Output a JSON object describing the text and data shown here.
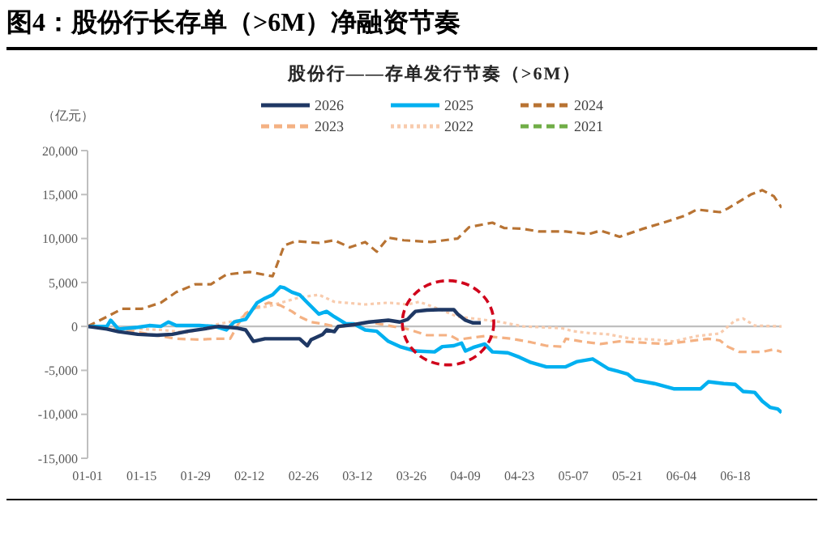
{
  "chart_data": {
    "type": "line",
    "title": "图4：股份行长存单（>6M）净融资节奏",
    "subtitle": "股份行——存单发行节奏（>6M）",
    "ylabel": "（亿元）",
    "legend": "top",
    "xlim": [
      "--01-01",
      "--06-30"
    ],
    "xticks": [
      {
        "value": "--01-01",
        "label": "01-01"
      },
      {
        "value": "--01-15",
        "label": "01-15"
      },
      {
        "value": "--01-29",
        "label": "01-29"
      },
      {
        "value": "--02-12",
        "label": "02-12"
      },
      {
        "value": "--02-26",
        "label": "02-26"
      },
      {
        "value": "--03-12",
        "label": "03-12"
      },
      {
        "value": "--03-26",
        "label": "03-26"
      },
      {
        "value": "--04-09",
        "label": "04-09"
      },
      {
        "value": "--04-23",
        "label": "04-23"
      },
      {
        "value": "--05-07",
        "label": "05-07"
      },
      {
        "value": "--05-21",
        "label": "05-21"
      },
      {
        "value": "--06-04",
        "label": "06-04"
      },
      {
        "value": "--06-18",
        "label": "06-18"
      }
    ],
    "ylim": [
      -15000,
      20000
    ],
    "yticks": [
      {
        "value": -15000,
        "label": "-15,000"
      },
      {
        "value": -10000,
        "label": "-10,000"
      },
      {
        "value": -5000,
        "label": "-5,000"
      },
      0,
      {
        "value": 5000,
        "label": "5,000"
      },
      {
        "value": 10000,
        "label": "10,000"
      },
      {
        "value": 15000,
        "label": "15,000"
      },
      {
        "value": 20000,
        "label": "20,000"
      }
    ],
    "ref_lines": [
      {
        "axis": "y",
        "value": 0,
        "color": "#bfbfbf"
      }
    ],
    "series": [
      {
        "name": "2026",
        "color": "#1f3864",
        "line_style": "solid",
        "x": [
          "--01-01",
          "--01-06",
          "--01-09",
          "--01-14",
          "--01-19",
          "--01-23",
          "--01-27",
          "--01-31",
          "--02-04",
          "--02-09",
          "--02-11",
          "--02-13",
          "--02-16",
          "--02-25",
          "--02-27",
          "--02-28",
          "--03-03",
          "--03-04",
          "--03-06",
          "--03-07",
          "--03-11",
          "--03-15",
          "--03-20",
          "--03-23",
          "--03-25",
          "--03-27",
          "--03-30",
          "--04-02",
          "--04-06",
          "--04-07",
          "--04-09",
          "--04-11",
          "--04-13"
        ],
        "values": [
          0,
          -300,
          -600,
          -900,
          -1000,
          -900,
          -550,
          -300,
          0,
          -200,
          -400,
          -1700,
          -1400,
          -1400,
          -2200,
          -1500,
          -900,
          -400,
          -600,
          0,
          200,
          500,
          700,
          500,
          800,
          1700,
          1850,
          1900,
          1900,
          1400,
          700,
          400,
          400
        ]
      },
      {
        "name": "2025",
        "color": "#00b0f0",
        "line_style": "solid",
        "x": [
          "--01-01",
          "--01-06",
          "--01-07",
          "--01-09",
          "--01-14",
          "--01-17",
          "--01-20",
          "--01-22",
          "--01-24",
          "--01-30",
          "--02-03",
          "--02-06",
          "--02-08",
          "--02-11",
          "--02-14",
          "--02-16",
          "--02-18",
          "--02-20",
          "--02-21",
          "--02-23",
          "--02-25",
          "--02-27",
          "--03-02",
          "--03-04",
          "--03-06",
          "--03-09",
          "--03-11",
          "--03-14",
          "--03-17",
          "--03-20",
          "--03-23",
          "--03-27",
          "--04-01",
          "--04-03",
          "--04-06",
          "--04-08",
          "--04-09",
          "--04-11",
          "--04-14",
          "--04-16",
          "--04-20",
          "--04-23",
          "--04-26",
          "--04-30",
          "--05-05",
          "--05-08",
          "--05-12",
          "--05-16",
          "--05-21",
          "--05-23",
          "--05-28",
          "--06-02",
          "--06-09",
          "--06-11",
          "--06-15",
          "--06-18",
          "--06-20",
          "--06-23",
          "--06-25",
          "--06-27",
          "--06-29",
          "--06-30"
        ],
        "values": [
          0,
          0,
          700,
          -300,
          -100,
          100,
          0,
          500,
          100,
          100,
          0,
          -400,
          500,
          800,
          2700,
          3200,
          3600,
          4500,
          4400,
          3900,
          3600,
          2700,
          1400,
          1700,
          1100,
          300,
          300,
          -400,
          -550,
          -1700,
          -2300,
          -2800,
          -2900,
          -2300,
          -2200,
          -1900,
          -2800,
          -2400,
          -2000,
          -2900,
          -3000,
          -3500,
          -4100,
          -4600,
          -4600,
          -4000,
          -3700,
          -4800,
          -5400,
          -6100,
          -6500,
          -7100,
          -7100,
          -6300,
          -6500,
          -6600,
          -7400,
          -7500,
          -8500,
          -9200,
          -9400,
          -9800
        ]
      },
      {
        "name": "2024",
        "color": "#b87333",
        "line_style": "dashed",
        "x": [
          "--01-01",
          "--01-06",
          "--01-10",
          "--01-15",
          "--01-20",
          "--01-24",
          "--01-29",
          "--02-02",
          "--02-06",
          "--02-12",
          "--02-18",
          "--02-21",
          "--02-24",
          "--03-02",
          "--03-06",
          "--03-10",
          "--03-14",
          "--03-17",
          "--03-20",
          "--03-24",
          "--03-31",
          "--04-07",
          "--04-10",
          "--04-16",
          "--04-19",
          "--04-24",
          "--04-28",
          "--05-05",
          "--05-11",
          "--05-14",
          "--05-19",
          "--05-25",
          "--05-31",
          "--06-05",
          "--06-08",
          "--06-14",
          "--06-16",
          "--06-22",
          "--06-25",
          "--06-28",
          "--06-30"
        ],
        "values": [
          0,
          1100,
          2000,
          2000,
          2700,
          3900,
          4800,
          4800,
          5900,
          6200,
          5700,
          9200,
          9700,
          9500,
          9800,
          9000,
          9600,
          8500,
          10100,
          9800,
          9600,
          10000,
          11300,
          11800,
          11200,
          11100,
          10800,
          10800,
          10500,
          10900,
          10200,
          11100,
          11900,
          12600,
          13300,
          13000,
          13400,
          15000,
          15500,
          14800,
          13500
        ]
      },
      {
        "name": "2023",
        "color": "#f4b183",
        "line_style": "dashed",
        "x": [
          "--01-01",
          "--01-06",
          "--01-13",
          "--01-17",
          "--01-24",
          "--01-30",
          "--02-03",
          "--02-07",
          "--02-09",
          "--02-11",
          "--02-14",
          "--02-17",
          "--02-20",
          "--02-23",
          "--02-25",
          "--02-28",
          "--03-03",
          "--03-07",
          "--03-12",
          "--03-15",
          "--03-20",
          "--03-25",
          "--03-30",
          "--04-05",
          "--04-07",
          "--04-14",
          "--04-21",
          "--04-26",
          "--04-30",
          "--05-04",
          "--05-05",
          "--05-09",
          "--05-14",
          "--05-19",
          "--05-31",
          "--06-11",
          "--06-14",
          "--06-16",
          "--06-19",
          "--06-25",
          "--06-28",
          "--06-30"
        ],
        "values": [
          0,
          -100,
          -550,
          -900,
          -1400,
          -1500,
          -1400,
          -1400,
          200,
          1500,
          2200,
          2700,
          2400,
          1700,
          1100,
          500,
          300,
          -100,
          300,
          500,
          100,
          -300,
          -1000,
          -1000,
          -1500,
          -1100,
          -1400,
          -1800,
          -2200,
          -2300,
          -1400,
          -1700,
          -2000,
          -1700,
          -2000,
          -1400,
          -1600,
          -2300,
          -2900,
          -2900,
          -2600,
          -2900
        ]
      },
      {
        "name": "2022",
        "color": "#f8cbad",
        "line_style": "dotted",
        "x": [
          "--01-01",
          "--01-20",
          "--01-27",
          "--02-03",
          "--02-09",
          "--02-13",
          "--02-17",
          "--02-21",
          "--02-25",
          "--03-02",
          "--03-06",
          "--03-14",
          "--03-20",
          "--03-25",
          "--03-28",
          "--04-02",
          "--04-07",
          "--04-13",
          "--04-18",
          "--04-24",
          "--05-04",
          "--05-07",
          "--05-11",
          "--05-16",
          "--05-22",
          "--05-28",
          "--06-02",
          "--06-08",
          "--06-14",
          "--06-18",
          "--06-20",
          "--06-23",
          "--06-30"
        ],
        "values": [
          0,
          -400,
          -700,
          200,
          700,
          2000,
          2300,
          2800,
          3300,
          3600,
          2800,
          2500,
          2700,
          2500,
          2800,
          2000,
          1100,
          800,
          500,
          0,
          -200,
          -550,
          -750,
          -900,
          -1400,
          -1500,
          -1700,
          -1100,
          -800,
          700,
          900,
          100,
          0
        ]
      },
      {
        "name": "2021",
        "color": "#70ad47",
        "line_style": "dashed"
      }
    ]
  }
}
